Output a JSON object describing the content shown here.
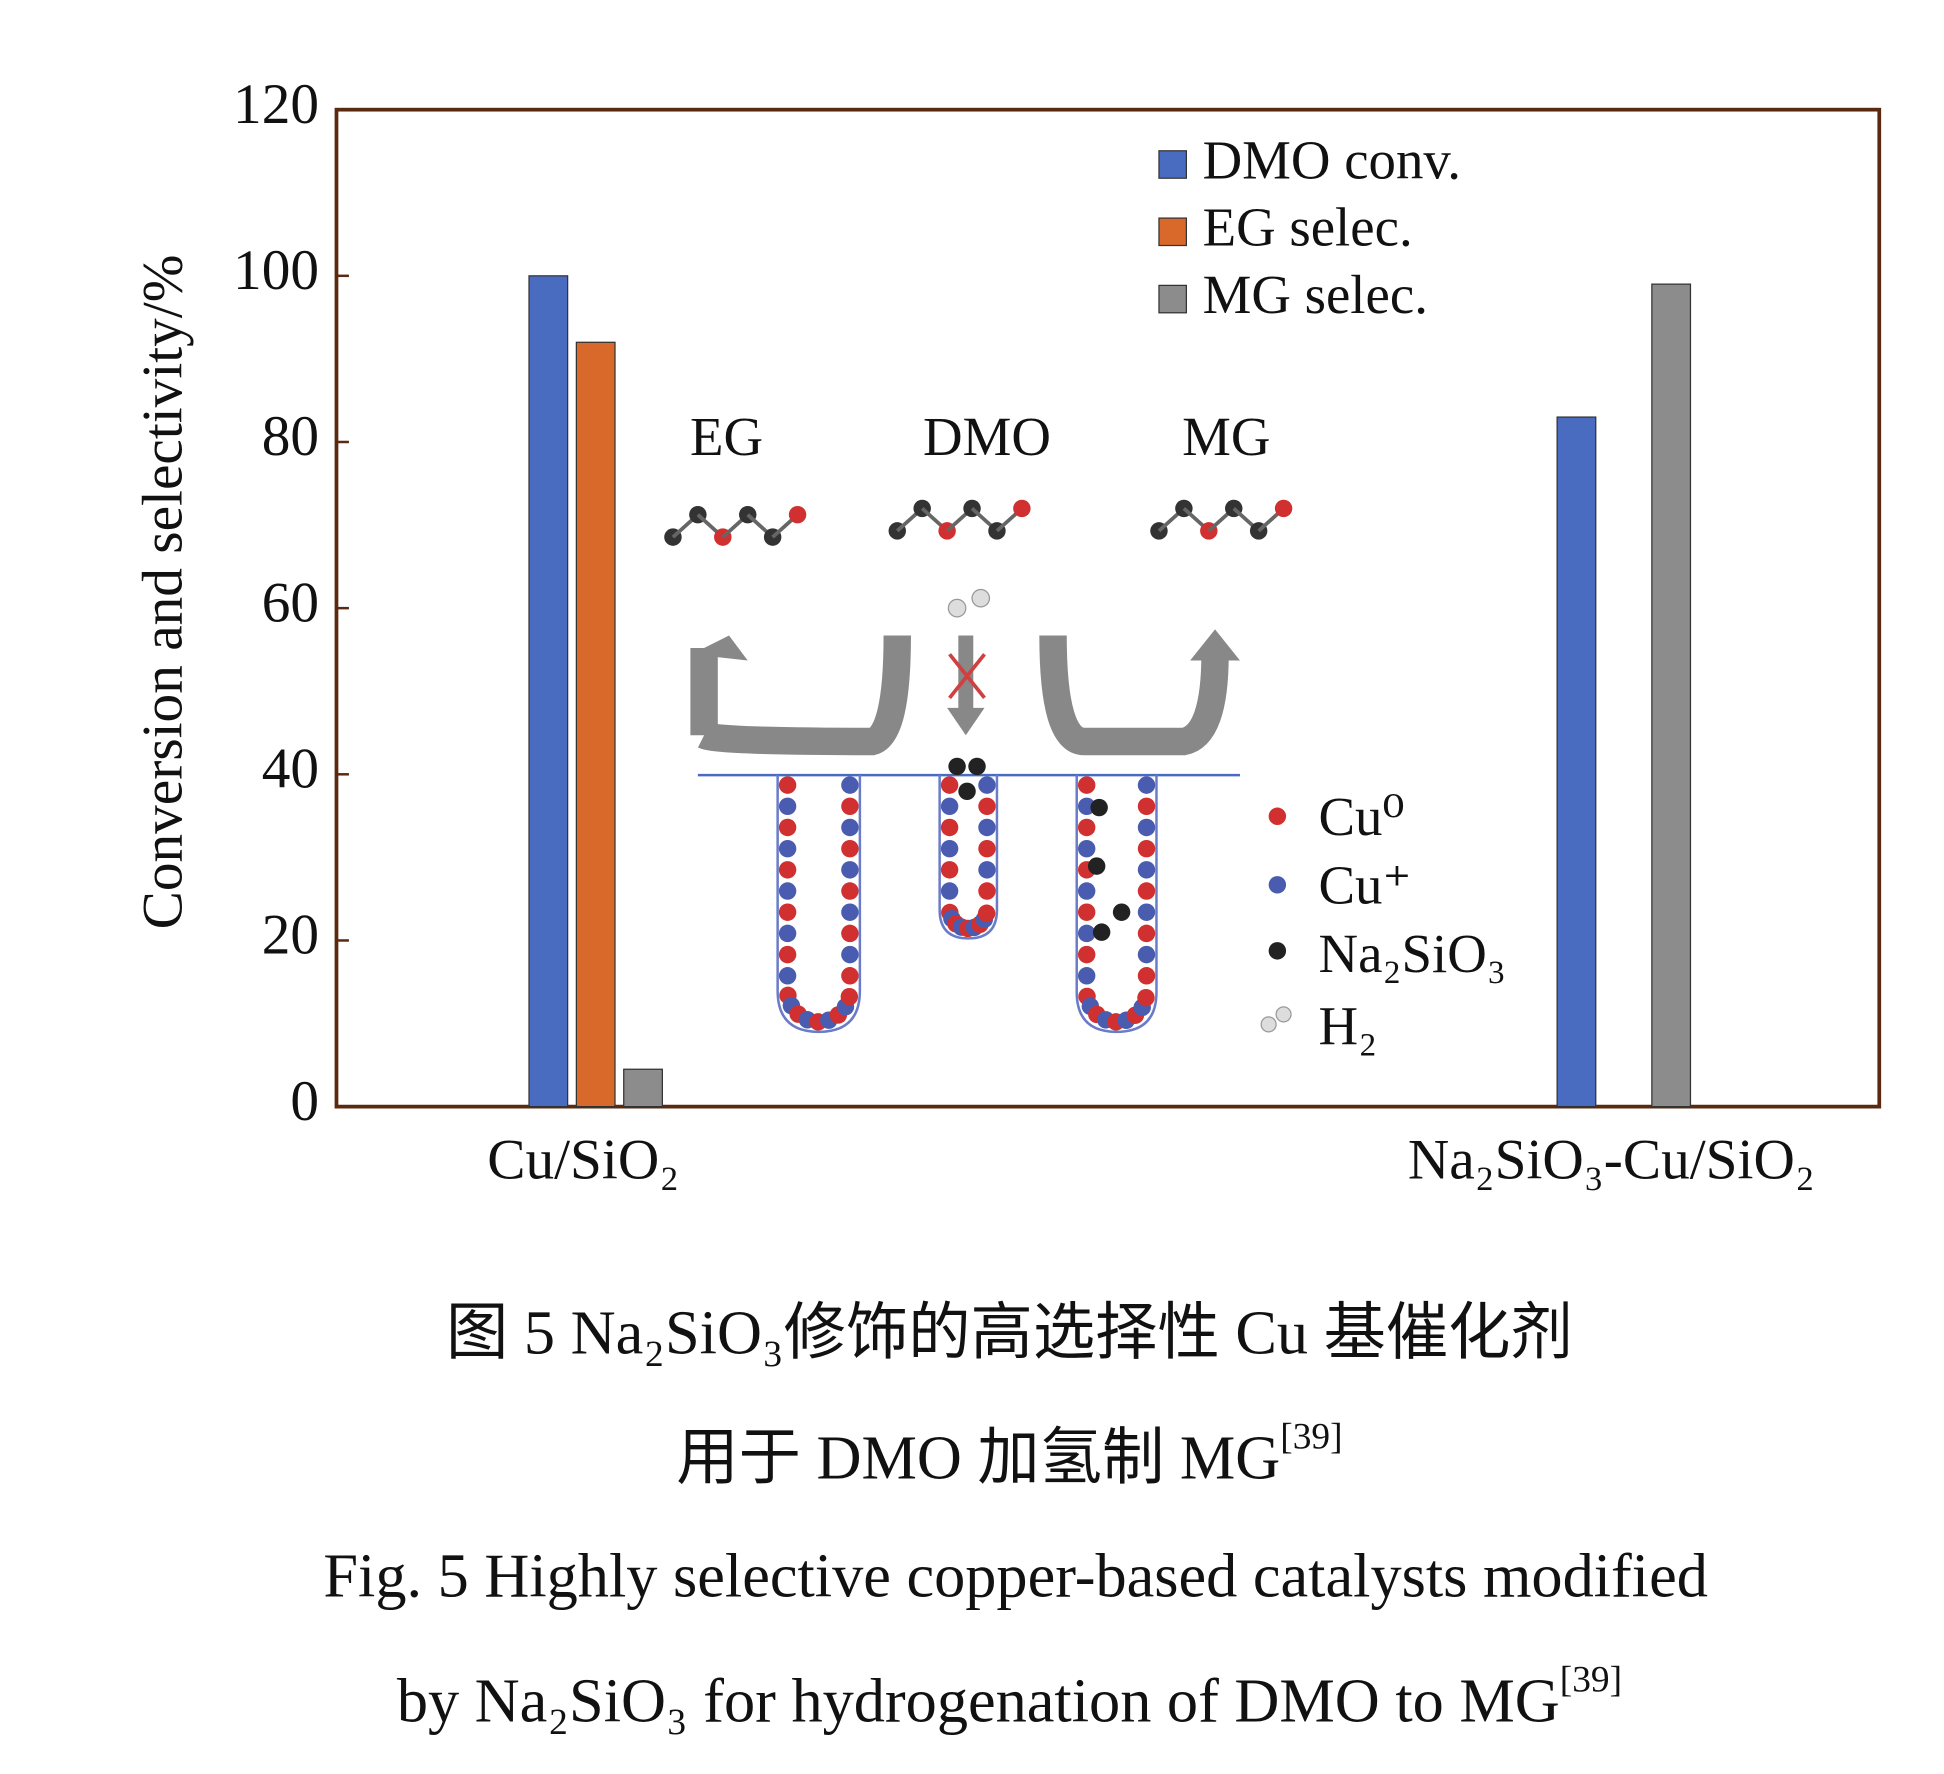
{
  "chart_data": {
    "type": "bar",
    "ylabel": "Conversion and selectivity/%",
    "categories": [
      "Cu/SiO₂",
      "Na₂SiO₃-Cu/SiO₂"
    ],
    "series": [
      {
        "name": "DMO conv.",
        "color": "#4a6cc0",
        "values": [
          100,
          83
        ]
      },
      {
        "name": "EG selec.",
        "color": "#d9692a",
        "values": [
          92,
          null
        ]
      },
      {
        "name": "MG selec.",
        "color": "#8c8c8c",
        "values": [
          4.5,
          99
        ]
      }
    ],
    "ylim": [
      0,
      120
    ],
    "yticks": [
      0,
      20,
      40,
      60,
      80,
      100,
      120
    ],
    "legend": "upper right",
    "inset": {
      "molecules": [
        "EG",
        "DMO",
        "MG"
      ],
      "legend": [
        "Cu⁰",
        "Cu⁺",
        "Na₂SiO₃",
        "H₂"
      ]
    }
  },
  "caption": [
    {
      "text": "图 5  Na₂SiO₃修饰的高选择性 Cu 基催化剂"
    },
    {
      "text": "用于 DMO 加氢制 MG",
      "ref": "[39]"
    },
    {
      "text": "Fig. 5  Highly selective copper-based catalysts modified"
    },
    {
      "text": "by Na₂SiO₃ for hydrogenation of DMO to MG",
      "ref": "[39]"
    }
  ]
}
